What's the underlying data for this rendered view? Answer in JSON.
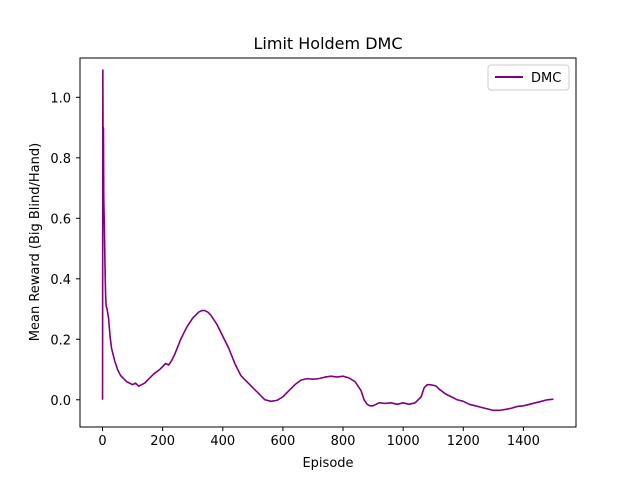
{
  "chart_data": {
    "type": "line",
    "title": "Limit Holdem DMC",
    "xlabel": "Episode",
    "ylabel": "Mean Reward (Big Blind/Hand)",
    "xlim": [
      -75,
      1575
    ],
    "ylim": [
      -0.09,
      1.13
    ],
    "xticks": [
      0,
      200,
      400,
      600,
      800,
      1000,
      1200,
      1400
    ],
    "yticks": [
      0.0,
      0.2,
      0.4,
      0.6,
      0.8,
      1.0
    ],
    "xtick_labels": [
      "0",
      "200",
      "400",
      "600",
      "800",
      "1000",
      "1200",
      "1400"
    ],
    "ytick_labels": [
      "0.0",
      "0.2",
      "0.4",
      "0.6",
      "0.8",
      "1.0"
    ],
    "legend_position": "top-right",
    "grid": false,
    "series": [
      {
        "name": "DMC",
        "color": "#800080",
        "x": [
          0,
          1,
          2,
          3,
          4,
          5,
          6,
          8,
          10,
          12,
          15,
          20,
          25,
          30,
          40,
          50,
          60,
          70,
          80,
          90,
          100,
          110,
          120,
          130,
          140,
          150,
          170,
          190,
          200,
          210,
          220,
          230,
          240,
          260,
          280,
          300,
          320,
          330,
          340,
          350,
          360,
          380,
          400,
          420,
          440,
          460,
          480,
          500,
          520,
          540,
          560,
          580,
          600,
          620,
          640,
          660,
          680,
          700,
          720,
          740,
          760,
          780,
          800,
          820,
          840,
          860,
          870,
          880,
          890,
          900,
          910,
          920,
          940,
          960,
          980,
          1000,
          1020,
          1040,
          1060,
          1070,
          1080,
          1090,
          1100,
          1110,
          1120,
          1140,
          1160,
          1180,
          1200,
          1220,
          1240,
          1260,
          1280,
          1300,
          1320,
          1340,
          1360,
          1380,
          1400,
          1420,
          1440,
          1460,
          1480,
          1500
        ],
        "values": [
          0.0,
          1.09,
          0.75,
          0.9,
          0.67,
          0.62,
          0.58,
          0.45,
          0.35,
          0.31,
          0.3,
          0.27,
          0.21,
          0.17,
          0.13,
          0.1,
          0.08,
          0.07,
          0.06,
          0.055,
          0.05,
          0.055,
          0.045,
          0.05,
          0.055,
          0.065,
          0.085,
          0.1,
          0.11,
          0.12,
          0.115,
          0.13,
          0.15,
          0.2,
          0.24,
          0.27,
          0.29,
          0.295,
          0.295,
          0.29,
          0.28,
          0.25,
          0.21,
          0.17,
          0.12,
          0.08,
          0.06,
          0.04,
          0.02,
          0.0,
          -0.005,
          -0.002,
          0.01,
          0.03,
          0.05,
          0.065,
          0.07,
          0.068,
          0.07,
          0.075,
          0.078,
          0.075,
          0.078,
          0.072,
          0.06,
          0.03,
          0.0,
          -0.015,
          -0.02,
          -0.02,
          -0.015,
          -0.01,
          -0.012,
          -0.01,
          -0.015,
          -0.01,
          -0.015,
          -0.01,
          0.01,
          0.04,
          0.05,
          0.05,
          0.048,
          0.045,
          0.035,
          0.02,
          0.01,
          0.0,
          -0.005,
          -0.015,
          -0.02,
          -0.025,
          -0.03,
          -0.035,
          -0.035,
          -0.032,
          -0.028,
          -0.022,
          -0.02,
          -0.015,
          -0.01,
          -0.005,
          0.0,
          0.002
        ]
      }
    ]
  }
}
